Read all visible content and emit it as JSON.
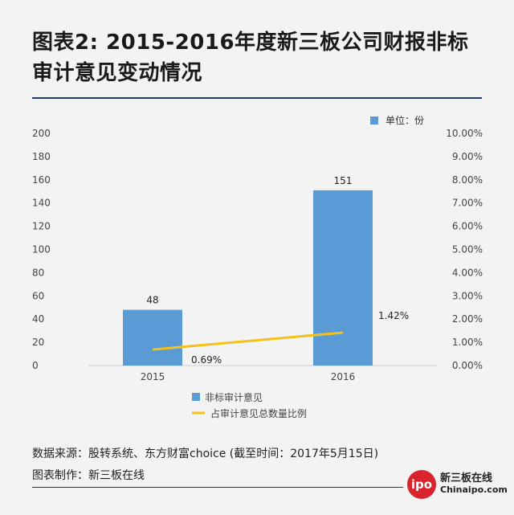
{
  "header": {
    "title": "图表2: 2015-2016年度新三板公司财报非标审计意见变动情况"
  },
  "chart_data": {
    "type": "bar",
    "categories": [
      "2015",
      "2016"
    ],
    "unit_label": "单位：份",
    "y_left": {
      "range": [
        0,
        200
      ],
      "ticks": [
        "0",
        "20",
        "40",
        "60",
        "80",
        "100",
        "120",
        "140",
        "160",
        "180",
        "200"
      ]
    },
    "y_right": {
      "range": [
        0,
        10
      ],
      "ticks": [
        "0.00%",
        "1.00%",
        "2.00%",
        "3.00%",
        "4.00%",
        "5.00%",
        "6.00%",
        "7.00%",
        "8.00%",
        "9.00%",
        "10.00%"
      ]
    },
    "series": [
      {
        "name": "非标审计意见",
        "kind": "bar",
        "axis": "left",
        "values": [
          48,
          151
        ],
        "labels": [
          "48",
          "151"
        ],
        "color": "#5b9bd5"
      },
      {
        "name": "占审计意见总数量比例",
        "kind": "line",
        "axis": "right",
        "values": [
          0.69,
          1.42
        ],
        "labels": [
          "0.69%",
          "1.42%"
        ],
        "color": "#f5c018"
      }
    ],
    "legend_position": "bottom",
    "grid": false
  },
  "footer": {
    "source": "数据来源：股转系统、东方财富choice (截至时间：2017年5月15日)",
    "credit": "图表制作：新三板在线",
    "logo_badge": "ipo",
    "logo_cn": "新三板在线",
    "logo_en": "Chinaipo.com"
  }
}
